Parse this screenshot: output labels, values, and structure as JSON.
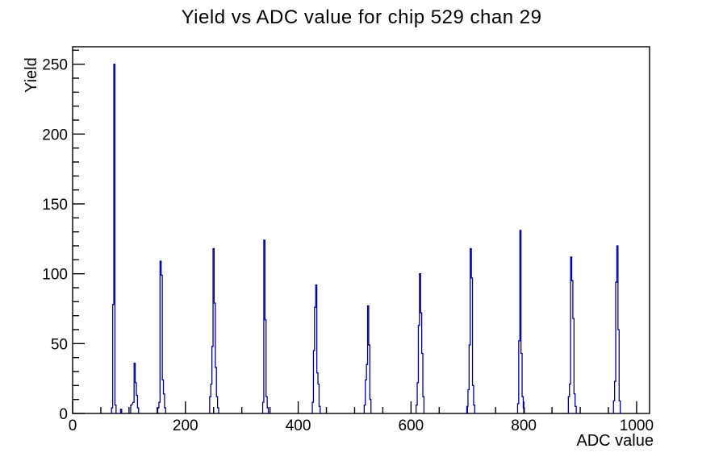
{
  "chart_data": {
    "type": "bar",
    "subtype": "histogram-spikes",
    "title": "Yield vs ADC value for chip 529 chan 29",
    "xlabel": "ADC value",
    "ylabel": "Yield",
    "xlim": [
      0,
      1023
    ],
    "ylim": [
      0,
      262.5
    ],
    "x_major_ticks": [
      0,
      200,
      400,
      600,
      800,
      1000
    ],
    "x_minor_step": 50,
    "y_major_ticks": [
      0,
      50,
      100,
      150,
      200,
      250
    ],
    "y_minor_step": 10,
    "grid": "off",
    "legend": "none",
    "line_color": "#000099",
    "frame_color": "#000000",
    "bin_width": 2,
    "clusters": [
      {
        "bars": [
          [
            69,
            4
          ],
          [
            71,
            78
          ],
          [
            73,
            250
          ],
          [
            75,
            6
          ]
        ]
      },
      {
        "bars": [
          [
            85,
            3
          ]
        ]
      },
      {
        "bars": [
          [
            103,
            6
          ],
          [
            107,
            8
          ],
          [
            109,
            36
          ],
          [
            111,
            22
          ],
          [
            113,
            13
          ],
          [
            115,
            4
          ]
        ]
      },
      {
        "bars": [
          [
            151,
            4
          ],
          [
            153,
            8
          ],
          [
            155,
            109
          ],
          [
            157,
            99
          ],
          [
            159,
            24
          ],
          [
            161,
            14
          ],
          [
            163,
            4
          ]
        ]
      },
      {
        "bars": [
          [
            243,
            12
          ],
          [
            245,
            21
          ],
          [
            247,
            48
          ],
          [
            249,
            118
          ],
          [
            251,
            79
          ],
          [
            253,
            33
          ],
          [
            255,
            12
          ],
          [
            257,
            4
          ]
        ]
      },
      {
        "bars": [
          [
            337,
            8
          ],
          [
            339,
            124
          ],
          [
            341,
            67
          ],
          [
            343,
            12
          ],
          [
            345,
            4
          ]
        ]
      },
      {
        "bars": [
          [
            425,
            8
          ],
          [
            427,
            45
          ],
          [
            429,
            76
          ],
          [
            431,
            92
          ],
          [
            433,
            29
          ],
          [
            435,
            21
          ],
          [
            437,
            5
          ]
        ]
      },
      {
        "bars": [
          [
            517,
            6
          ],
          [
            519,
            24
          ],
          [
            521,
            35
          ],
          [
            523,
            77
          ],
          [
            525,
            49
          ],
          [
            527,
            10
          ]
        ]
      },
      {
        "bars": [
          [
            609,
            6
          ],
          [
            611,
            22
          ],
          [
            613,
            63
          ],
          [
            615,
            100
          ],
          [
            617,
            72
          ],
          [
            619,
            43
          ],
          [
            621,
            12
          ]
        ]
      },
      {
        "bars": [
          [
            699,
            5
          ],
          [
            701,
            17
          ],
          [
            703,
            49
          ],
          [
            705,
            118
          ],
          [
            707,
            97
          ],
          [
            709,
            20
          ],
          [
            711,
            6
          ]
        ]
      },
      {
        "bars": [
          [
            789,
            7
          ],
          [
            791,
            52
          ],
          [
            793,
            131
          ],
          [
            795,
            43
          ],
          [
            797,
            12
          ],
          [
            799,
            4
          ]
        ]
      },
      {
        "bars": [
          [
            879,
            12
          ],
          [
            881,
            21
          ],
          [
            883,
            112
          ],
          [
            885,
            95
          ],
          [
            887,
            68
          ],
          [
            889,
            14
          ],
          [
            891,
            5
          ]
        ]
      },
      {
        "bars": [
          [
            959,
            9
          ],
          [
            961,
            23
          ],
          [
            963,
            94
          ],
          [
            965,
            120
          ],
          [
            967,
            60
          ],
          [
            969,
            9
          ]
        ]
      }
    ]
  }
}
